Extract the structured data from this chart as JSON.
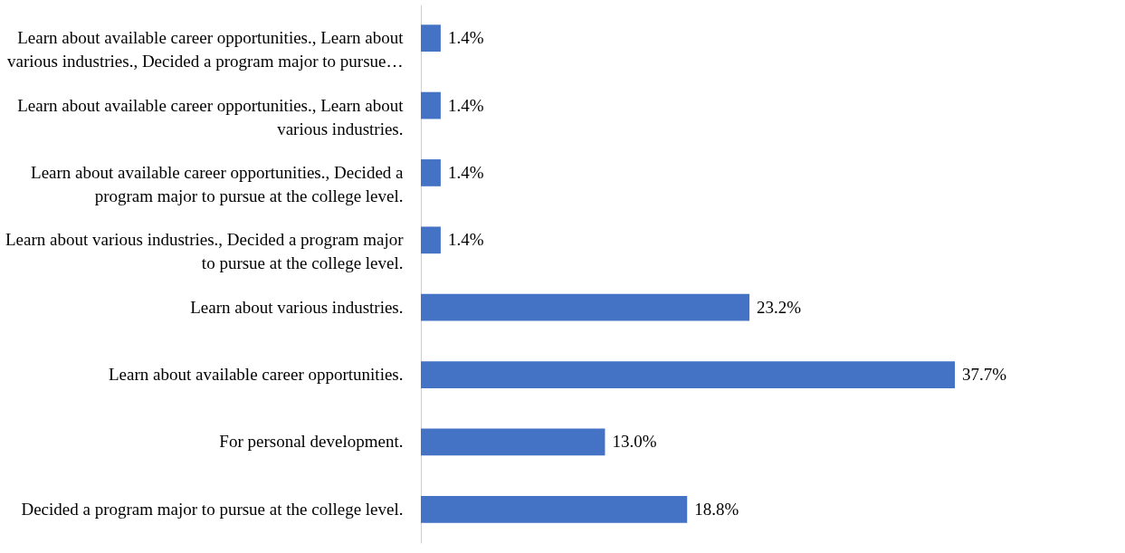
{
  "chart_data": {
    "type": "bar",
    "orientation": "horizontal",
    "categories": [
      "Learn about available career opportunities., Learn about various industries., Decided a program major to pursue…",
      "Learn about available career opportunities., Learn about various industries.",
      "Learn about available career opportunities., Decided a program major to pursue at the college level.",
      "Learn about various industries., Decided a program major to pursue at the college level.",
      "Learn about various industries.",
      "Learn about available career opportunities.",
      "For personal development.",
      "Decided a program major to pursue at the college level."
    ],
    "values": [
      1.4,
      1.4,
      1.4,
      1.4,
      23.2,
      37.7,
      13.0,
      18.8
    ],
    "value_labels": [
      "1.4%",
      "1.4%",
      "1.4%",
      "1.4%",
      "23.2%",
      "37.7%",
      "13.0%",
      "18.8%"
    ],
    "color": "#4472c4"
  }
}
